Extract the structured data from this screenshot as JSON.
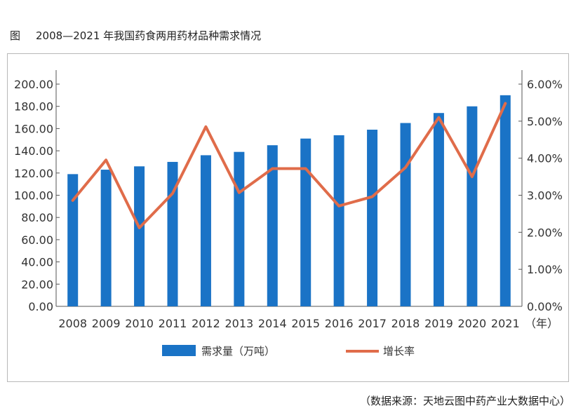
{
  "figure": {
    "label": "图",
    "title": "2008—2021 年我国药食两用药材品种需求情况",
    "source": "（数据来源：天地云图中药产业大数据中心）"
  },
  "colors": {
    "bar": "#1a73c6",
    "line": "#e06c4a",
    "axis": "#555555",
    "frame": "#b8b8b8"
  },
  "chart_data": {
    "type": "bar",
    "categories": [
      "2008",
      "2009",
      "2010",
      "2011",
      "2012",
      "2013",
      "2014",
      "2015",
      "2016",
      "2017",
      "2018",
      "2019",
      "2020",
      "2021"
    ],
    "x_unit": "（年）",
    "series": [
      {
        "name": "需求量（万吨）",
        "type": "bar",
        "axis": "left",
        "values": [
          119,
          123,
          126,
          130,
          136,
          139,
          145,
          151,
          154,
          159,
          165,
          174,
          180,
          190
        ]
      },
      {
        "name": "增长率",
        "type": "line",
        "axis": "right",
        "values": [
          2.86,
          3.95,
          2.12,
          3.05,
          4.85,
          3.07,
          3.72,
          3.72,
          2.71,
          2.96,
          3.75,
          5.1,
          3.5,
          5.48
        ]
      }
    ],
    "y_left": {
      "ylim": [
        0,
        200
      ],
      "ticks": [
        "0.00",
        "20.00",
        "40.00",
        "60.00",
        "80.00",
        "100.00",
        "120.00",
        "140.00",
        "160.00",
        "180.00",
        "200.00"
      ]
    },
    "y_right": {
      "ylim": [
        0,
        6
      ],
      "ticks": [
        "0.00%",
        "1.00%",
        "2.00%",
        "3.00%",
        "4.00%",
        "5.00%",
        "6.00%"
      ]
    },
    "legend_position": "bottom"
  }
}
